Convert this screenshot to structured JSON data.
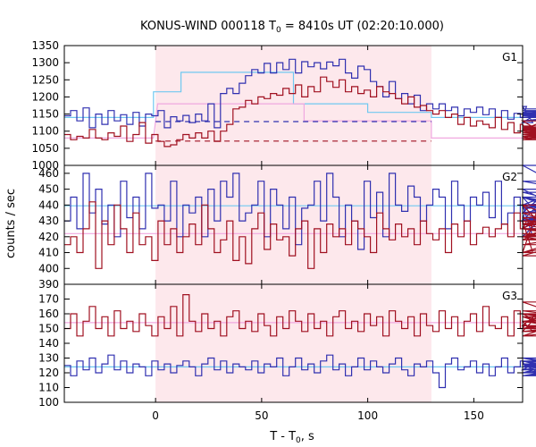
{
  "chart_data": {
    "type": "line",
    "title": "KONUS-WIND 000118 T",
    "title_sub": "0",
    "title_rest": " = 8410s UT (02:20:10.000)",
    "xlabel": "T - T",
    "xlabel_sub": "0",
    "xlabel_rest": ", s",
    "ylabel": "counts / sec",
    "xlim": [
      -43,
      173
    ],
    "shaded_interval": [
      0,
      130
    ],
    "x_ticks": [
      0,
      50,
      100,
      150
    ],
    "colors": {
      "blue": "#3030b0",
      "red": "#a01020",
      "shade": "#fde8ec",
      "bg_cyan": "#70c8f0",
      "bg_pink": "#f0a8e0",
      "dash_blue": "#3030b0",
      "dash_red": "#a01020"
    },
    "panels": [
      {
        "name": "G1",
        "ylim": [
          1000,
          1350
        ],
        "y_ticks": [
          1000,
          1050,
          1100,
          1150,
          1200,
          1250,
          1300,
          1350
        ],
        "series": [
          {
            "color": "blue",
            "x_start": -43,
            "step": 2.944,
            "values": [
              1145,
              1160,
              1130,
              1168,
              1110,
              1150,
              1120,
              1160,
              1130,
              1148,
              1120,
              1155,
              1115,
              1150,
              1145,
              1160,
              1110,
              1142,
              1130,
              1146,
              1125,
              1150,
              1130,
              1180,
              1110,
              1210,
              1225,
              1210,
              1240,
              1262,
              1280,
              1270,
              1298,
              1270,
              1300,
              1280,
              1310,
              1270,
              1303,
              1288,
              1300,
              1282,
              1302,
              1291,
              1310,
              1270,
              1255,
              1290,
              1280,
              1245,
              1230,
              1200,
              1245,
              1195,
              1210,
              1180,
              1205,
              1160,
              1180,
              1165,
              1180,
              1160,
              1170,
              1145,
              1165,
              1155,
              1170,
              1148,
              1165,
              1140,
              1160,
              1135,
              1152,
              1140,
              1172,
              1125,
              1155,
              1148,
              1140,
              1150,
              1130,
              1145,
              1150,
              1155,
              1130,
              1148,
              1150,
              1160,
              1140,
              1140,
              1160,
              1145,
              1152,
              1150,
              1140,
              1150,
              1160,
              1140,
              1140,
              1145,
              1150,
              1150,
              1140,
              1165
            ]
          },
          {
            "color": "red",
            "x_start": -43,
            "step": 2.944,
            "values": [
              1090,
              1075,
              1085,
              1080,
              1105,
              1080,
              1075,
              1095,
              1085,
              1115,
              1070,
              1090,
              1125,
              1065,
              1090,
              1070,
              1055,
              1060,
              1075,
              1090,
              1080,
              1095,
              1080,
              1100,
              1070,
              1100,
              1120,
              1165,
              1170,
              1190,
              1180,
              1200,
              1195,
              1210,
              1205,
              1225,
              1210,
              1235,
              1200,
              1230,
              1215,
              1258,
              1245,
              1228,
              1250,
              1215,
              1230,
              1210,
              1220,
              1200,
              1230,
              1215,
              1210,
              1195,
              1180,
              1200,
              1170,
              1175,
              1160,
              1150,
              1160,
              1140,
              1150,
              1120,
              1140,
              1115,
              1130,
              1120,
              1110,
              1140,
              1105,
              1125,
              1095,
              1120,
              1100,
              1115,
              1105,
              1130,
              1080,
              1110,
              1090,
              1100,
              1075,
              1105,
              1090,
              1080,
              1095,
              1115,
              1085,
              1105,
              1080,
              1095,
              1100,
              1085,
              1095,
              1110,
              1080,
              1095,
              1085,
              1105,
              1080,
              1100,
              1075,
              1100
            ]
          }
        ],
        "background": [
          {
            "color": "bg_cyan",
            "steps": [
              [
                -43,
                1140
              ],
              [
                -1,
                1140
              ],
              [
                -1,
                1215
              ],
              [
                12,
                1215
              ],
              [
                12,
                1272
              ],
              [
                65,
                1272
              ],
              [
                65,
                1180
              ],
              [
                100,
                1180
              ],
              [
                100,
                1155
              ],
              [
                130,
                1155
              ],
              [
                130,
                1140
              ],
              [
                173,
                1140
              ]
            ]
          },
          {
            "color": "bg_pink",
            "steps": [
              [
                -43,
                1080
              ],
              [
                -1,
                1080
              ],
              [
                1,
                1180
              ],
              [
                70,
                1180
              ],
              [
                70,
                1130
              ],
              [
                130,
                1130
              ],
              [
                130,
                1080
              ],
              [
                173,
                1080
              ]
            ]
          }
        ],
        "dashed": [
          {
            "color": "dash_blue",
            "y": 1128,
            "x_range": [
              0,
              130
            ]
          },
          {
            "color": "dash_red",
            "y": 1071,
            "x_range": [
              0,
              130
            ]
          }
        ]
      },
      {
        "name": "G2",
        "ylim": [
          390,
          465
        ],
        "y_ticks": [
          390,
          400,
          410,
          420,
          430,
          440,
          450,
          460
        ],
        "series": [
          {
            "color": "blue",
            "x_start": -43,
            "step": 2.944,
            "values": [
              430,
              445,
              425,
              460,
              435,
              450,
              428,
              440,
              420,
              455,
              432,
              445,
              425,
              460,
              438,
              440,
              430,
              455,
              420,
              440,
              435,
              445,
              420,
              450,
              430,
              455,
              445,
              460,
              430,
              435,
              440,
              455,
              420,
              450,
              440,
              425,
              445,
              415,
              438,
              440,
              455,
              430,
              460,
              445,
              420,
              440,
              430,
              412,
              455,
              432,
              448,
              420,
              460,
              440,
              436,
              452,
              445,
              430,
              440,
              450,
              445,
              425,
              455,
              440,
              430,
              445,
              440,
              448,
              432,
              455,
              428,
              435,
              445,
              430,
              440,
              420,
              430,
              445,
              425,
              440,
              450,
              435,
              465,
              445,
              430,
              440,
              435,
              438,
              445,
              430,
              440,
              435,
              448,
              430,
              455,
              440,
              430,
              440,
              445,
              428,
              440,
              432,
              440
            ]
          },
          {
            "color": "red",
            "x_start": -43,
            "step": 2.944,
            "values": [
              415,
              420,
              410,
              425,
              442,
              400,
              430,
              415,
              440,
              425,
              410,
              435,
              415,
              420,
              405,
              430,
              415,
              425,
              410,
              420,
              428,
              415,
              440,
              425,
              410,
              418,
              430,
              405,
              420,
              403,
              425,
              435,
              412,
              428,
              418,
              420,
              408,
              425,
              430,
              400,
              425,
              410,
              428,
              420,
              425,
              415,
              430,
              425,
              420,
              410,
              435,
              425,
              418,
              428,
              420,
              425,
              415,
              430,
              422,
              418,
              425,
              410,
              428,
              420,
              430,
              415,
              422,
              426,
              420,
              425,
              428,
              420,
              435,
              425,
              430,
              410,
              440,
              425,
              435,
              428,
              432,
              420,
              430,
              425,
              418,
              440,
              422,
              410,
              428,
              415,
              425,
              420,
              408,
              430,
              425,
              418,
              425,
              420,
              428,
              422,
              410,
              430,
              425
            ]
          }
        ],
        "background": [
          {
            "color": "bg_cyan",
            "steps": [
              [
                -43,
                439.5
              ],
              [
                173,
                439.5
              ]
            ]
          },
          {
            "color": "bg_pink",
            "steps": [
              [
                -43,
                422
              ],
              [
                173,
                422
              ]
            ]
          }
        ],
        "dashed": []
      },
      {
        "name": "G3",
        "ylim": [
          100,
          180
        ],
        "y_ticks": [
          100,
          110,
          120,
          130,
          140,
          150,
          160,
          170
        ],
        "series": [
          {
            "color": "blue",
            "x_start": -43,
            "step": 2.944,
            "values": [
              125,
              118,
              128,
              122,
              130,
              120,
              126,
              132,
              122,
              128,
              120,
              126,
              124,
              118,
              128,
              122,
              126,
              120,
              125,
              128,
              124,
              118,
              126,
              130,
              122,
              128,
              120,
              126,
              124,
              122,
              128,
              120,
              126,
              124,
              130,
              118,
              124,
              130,
              122,
              126,
              120,
              128,
              132,
              122,
              126,
              118,
              124,
              130,
              122,
              128,
              124,
              120,
              126,
              130,
              122,
              118,
              126,
              124,
              128,
              120,
              110,
              126,
              130,
              122,
              124,
              128,
              120,
              126,
              118,
              124,
              130,
              120,
              124,
              128,
              122,
              126,
              120,
              124,
              128,
              122,
              126,
              118,
              124,
              128,
              120,
              126,
              122,
              130,
              118,
              124,
              126,
              120,
              128,
              122,
              124,
              130,
              118,
              126,
              122,
              124,
              120,
              128,
              122
            ]
          },
          {
            "color": "red",
            "x_start": -43,
            "step": 2.944,
            "values": [
              150,
              160,
              145,
              155,
              165,
              150,
              158,
              145,
              162,
              150,
              155,
              148,
              160,
              152,
              145,
              158,
              150,
              165,
              145,
              173,
              155,
              148,
              160,
              150,
              155,
              145,
              158,
              162,
              150,
              155,
              148,
              160,
              152,
              145,
              158,
              150,
              162,
              155,
              148,
              160,
              150,
              155,
              145,
              158,
              162,
              150,
              155,
              148,
              160,
              152,
              158,
              145,
              162,
              155,
              150,
              158,
              145,
              160,
              152,
              148,
              162,
              150,
              158,
              145,
              155,
              160,
              148,
              165,
              152,
              150,
              158,
              145,
              162,
              150,
              155,
              148,
              160,
              152,
              168,
              160,
              155,
              150,
              158,
              145,
              160,
              155,
              150,
              158,
              148,
              155,
              160,
              150,
              158,
              145,
              155,
              162,
              150,
              148,
              155,
              160,
              152,
              145,
              158
            ]
          }
        ],
        "background": [
          {
            "color": "bg_cyan",
            "steps": [
              [
                -43,
                124
              ],
              [
                173,
                124
              ]
            ]
          },
          {
            "color": "bg_pink",
            "steps": [
              [
                -43,
                154
              ],
              [
                173,
                154
              ]
            ]
          }
        ],
        "dashed": []
      }
    ]
  }
}
